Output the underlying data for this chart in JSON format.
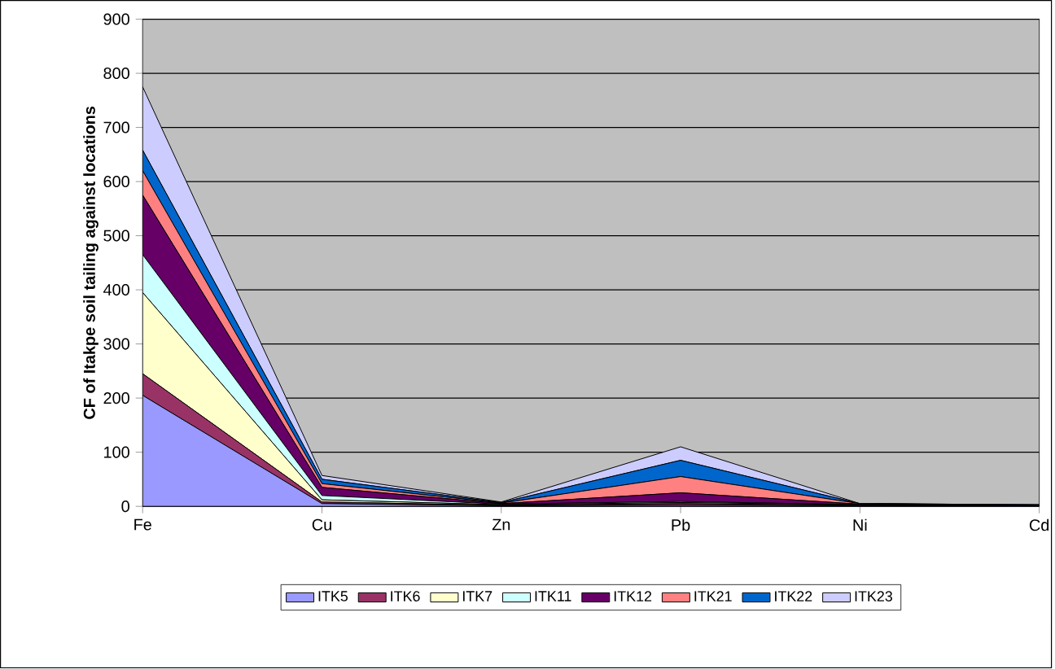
{
  "chart_data": {
    "type": "area",
    "stacked": true,
    "ylabel": "CF of Itakpe soil tailing against locations",
    "categories": [
      "Fe",
      "Cu",
      "Zn",
      "Pb",
      "Ni",
      "Cd"
    ],
    "ylim": [
      0,
      900
    ],
    "yticks": [
      0,
      100,
      200,
      300,
      400,
      500,
      600,
      700,
      800,
      900
    ],
    "grid": "y",
    "legend": "bottom",
    "series": [
      {
        "name": "ITK5",
        "color": "#9999ff",
        "values": [
          205,
          5,
          1,
          2,
          1,
          1
        ]
      },
      {
        "name": "ITK6",
        "color": "#993366",
        "values": [
          40,
          3,
          1,
          3,
          1,
          0
        ]
      },
      {
        "name": "ITK7",
        "color": "#ffffcc",
        "values": [
          150,
          4,
          1,
          2,
          1,
          0
        ]
      },
      {
        "name": "ITK11",
        "color": "#ccffff",
        "values": [
          70,
          8,
          1,
          2,
          0,
          1
        ]
      },
      {
        "name": "ITK12",
        "color": "#660066",
        "values": [
          110,
          15,
          1,
          16,
          1,
          0
        ]
      },
      {
        "name": "ITK21",
        "color": "#ff8080",
        "values": [
          45,
          7,
          1,
          30,
          1,
          0
        ]
      },
      {
        "name": "ITK22",
        "color": "#0066cc",
        "values": [
          38,
          8,
          1,
          30,
          0,
          1
        ]
      },
      {
        "name": "ITK23",
        "color": "#ccccff",
        "values": [
          117,
          7,
          1,
          25,
          0,
          0
        ]
      }
    ]
  }
}
